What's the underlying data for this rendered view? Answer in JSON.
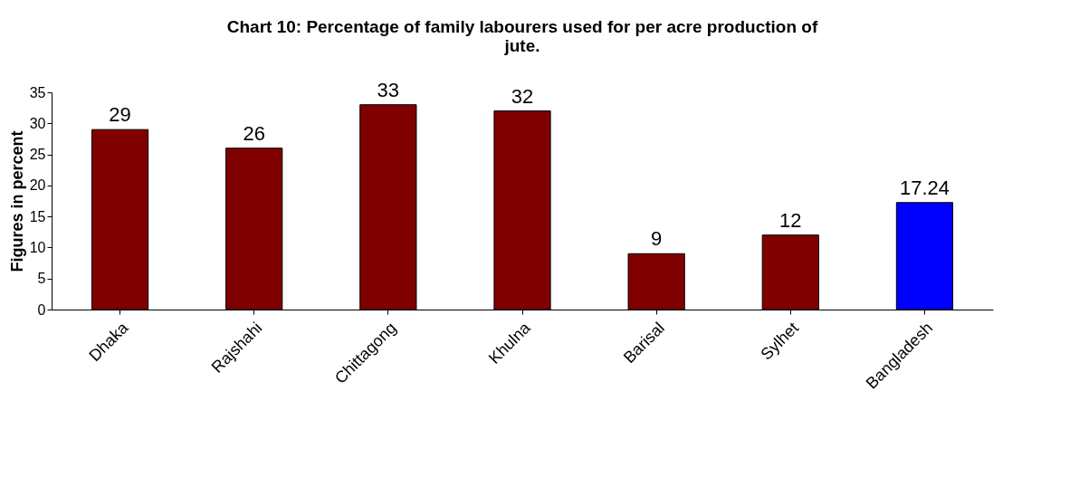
{
  "chart_data": {
    "type": "bar",
    "title": "Chart 10: Percentage of family labourers used for per acre production of jute.",
    "ylabel": "Figures in percent",
    "categories": [
      "Dhaka",
      "Rajshahi",
      "Chittagong",
      "Khulna",
      "Barisal",
      "Sylhet",
      "Bangladesh"
    ],
    "values": [
      29,
      26,
      33,
      32,
      9,
      12,
      17.24
    ],
    "colors": [
      "#800000",
      "#800000",
      "#800000",
      "#800000",
      "#800000",
      "#800000",
      "#0000ff"
    ],
    "ylim": [
      0,
      35
    ],
    "yticks": [
      0,
      5,
      10,
      15,
      20,
      25,
      30,
      35
    ],
    "grid": false,
    "data_labels": true
  }
}
